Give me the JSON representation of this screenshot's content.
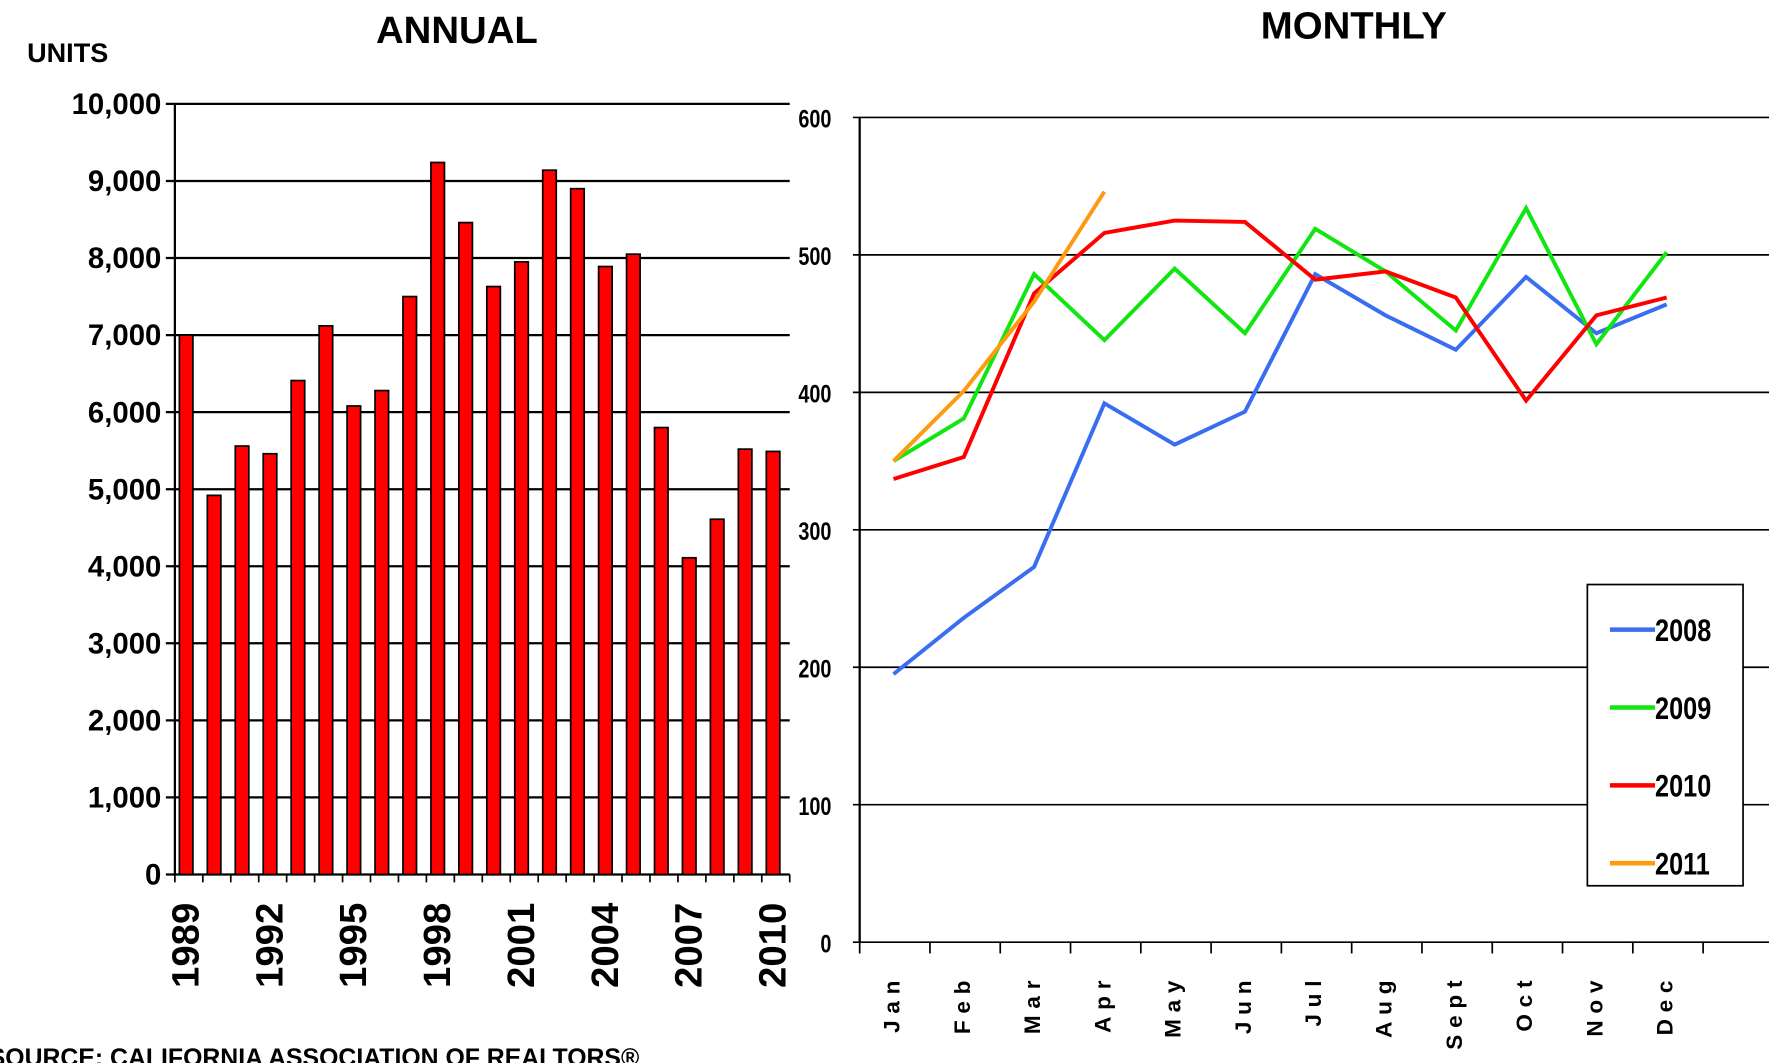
{
  "chart_data": [
    {
      "type": "bar",
      "title": "ANNUAL",
      "y_label": "UNITS",
      "categories": [
        "1989",
        null,
        null,
        "1992",
        null,
        null,
        "1995",
        null,
        null,
        "1998",
        null,
        null,
        "2001",
        null,
        null,
        "2004",
        null,
        null,
        "2007",
        null,
        null,
        "2010"
      ],
      "values": [
        7000,
        4920,
        5560,
        5460,
        6410,
        7120,
        6080,
        6280,
        7500,
        9240,
        8460,
        7630,
        7950,
        9140,
        8900,
        7890,
        8050,
        5800,
        4110,
        4610,
        5520,
        5490
      ],
      "color": "#ff0000",
      "ylim": [
        0,
        10000
      ],
      "yticks": [
        0,
        {
          "value": 1000,
          "label": "1,000"
        },
        {
          "value": 2000,
          "label": "2,000"
        },
        {
          "value": 3000,
          "label": "3,000"
        },
        {
          "value": 4000,
          "label": "4,000"
        },
        {
          "value": 5000,
          "label": "5,000"
        },
        {
          "value": 6000,
          "label": "6,000"
        },
        {
          "value": 7000,
          "label": "7,000"
        },
        {
          "value": 8000,
          "label": "8,000"
        },
        {
          "value": 9000,
          "label": "9,000"
        },
        {
          "value": 10000,
          "label": "10,000"
        }
      ],
      "grid": true
    },
    {
      "type": "line",
      "title": "MONTHLY",
      "categories": [
        "Jan",
        "Feb",
        "Mar",
        "Apr",
        "May",
        "Jun",
        "Jul",
        "Aug",
        "Sept",
        "Oct",
        "Nov",
        "Dec"
      ],
      "series": [
        {
          "name": "2008",
          "color": "#3a6ef0",
          "values": [
            195,
            236,
            273,
            392,
            362,
            386,
            486,
            456,
            431,
            484,
            443,
            464
          ]
        },
        {
          "name": "2009",
          "color": "#11e611",
          "values": [
            350,
            381,
            486,
            438,
            490,
            443,
            519,
            488,
            445,
            534,
            435,
            502
          ]
        },
        {
          "name": "2010",
          "color": "#ff0000",
          "values": [
            337,
            353,
            472,
            516,
            525,
            524,
            482,
            488,
            469,
            394,
            456,
            469
          ]
        },
        {
          "name": "2011",
          "color": "#ff9a10",
          "values": [
            350,
            401,
            466,
            546,
            null,
            null,
            null,
            null,
            null,
            null,
            null,
            null
          ]
        }
      ],
      "ylim": [
        0,
        600
      ],
      "yticks": [
        0,
        100,
        200,
        300,
        400,
        500,
        600
      ],
      "grid": true,
      "legend": "lower right"
    }
  ],
  "source": "SOURCE: CALIFORNIA ASSOCIATION OF REALTORS®"
}
